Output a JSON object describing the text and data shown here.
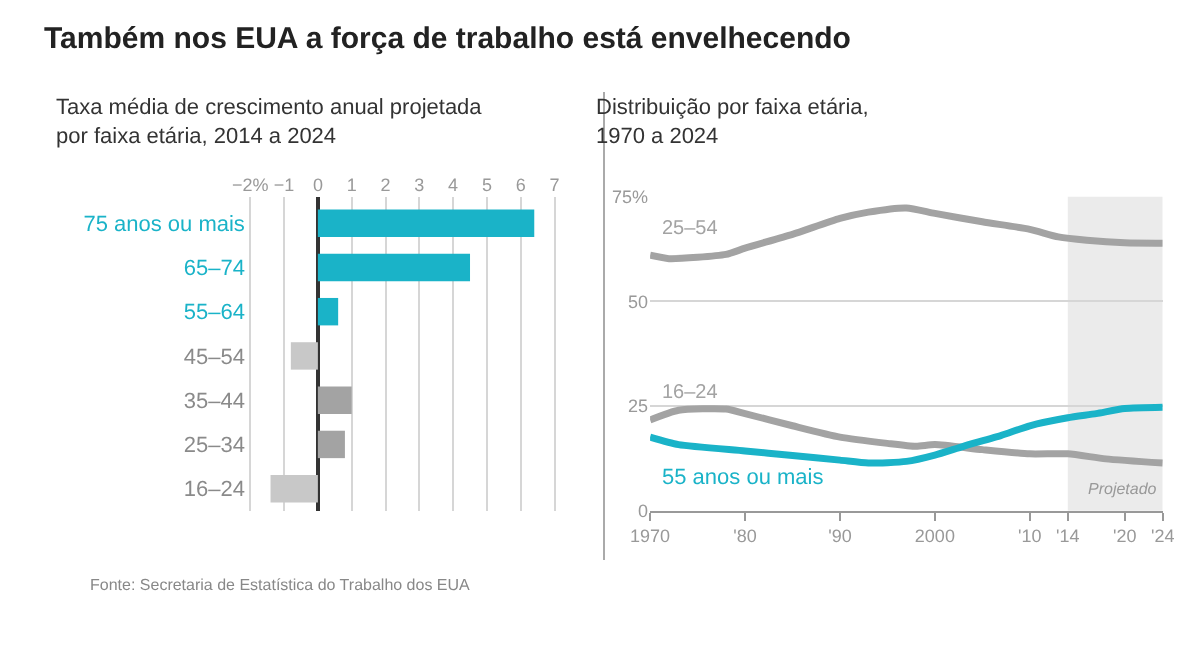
{
  "chart_data": [
    {
      "type": "bar",
      "orientation": "horizontal",
      "title": "Também nos EUA a força de trabalho está envelhecendo",
      "subtitle": "Taxa média de crescimento anual projetada\npor faixa etária, 2014 a 2024",
      "categories": [
        "75 anos ou mais",
        "65–74",
        "55–64",
        "45–54",
        "35–44",
        "25–34",
        "16–24"
      ],
      "values": [
        6.4,
        4.5,
        0.6,
        -0.8,
        1.0,
        0.8,
        -1.4
      ],
      "colors": [
        "#1ab3c8",
        "#1ab3c8",
        "#1ab3c8",
        "#c8c8c8",
        "#a3a3a3",
        "#a3a3a3",
        "#c8c8c8"
      ],
      "xlim": [
        -2.1,
        7.1
      ],
      "xticks": [
        {
          "value": -2,
          "label": "−2%"
        },
        {
          "value": -1,
          "label": "−1"
        },
        0,
        1,
        2,
        3,
        4,
        5,
        6,
        7
      ],
      "grid": "x",
      "annotations": [
        "Fonte: Secretaria de Estatística do Trabalho dos EUA"
      ]
    },
    {
      "type": "line",
      "title": "Distribuição por faixa etária,\n1970 a 2024",
      "series": [
        {
          "name": "25–54",
          "color": "#a3a3a3",
          "x": [
            1970,
            1972,
            1978,
            1980,
            1985,
            1990,
            1993,
            1997,
            2000,
            2005,
            2010,
            2013,
            2016,
            2020,
            2024
          ],
          "values": [
            61,
            60.2,
            61.2,
            62.7,
            66,
            69.8,
            71.3,
            72.3,
            71,
            69,
            67.2,
            65.4,
            64.6,
            64,
            63.9
          ]
        },
        {
          "name": "16–24",
          "color": "#a3a3a3",
          "x": [
            1970,
            1973,
            1978,
            1980,
            1985,
            1990,
            1995,
            1998,
            2000,
            2005,
            2010,
            2014,
            2018,
            2024
          ],
          "values": [
            21.7,
            24,
            24.3,
            23.2,
            20.3,
            17.6,
            16.1,
            15.4,
            15.8,
            14.6,
            13.6,
            13.6,
            12.4,
            11.4
          ]
        },
        {
          "name": "55 anos ou mais",
          "color": "#1ab3c8",
          "x": [
            1970,
            1973,
            1980,
            1985,
            1990,
            1993,
            1997,
            2000,
            2003,
            2007,
            2010,
            2014,
            2017,
            2020,
            2024
          ],
          "values": [
            17.6,
            15.8,
            14.3,
            13.2,
            12.1,
            11.4,
            11.8,
            13.3,
            15.4,
            18,
            20.3,
            22.2,
            23.2,
            24.4,
            24.7
          ]
        }
      ],
      "xlim": [
        1970,
        2024
      ],
      "xticks": [
        1970,
        {
          "value": 1980,
          "label": "'80"
        },
        {
          "value": 1990,
          "label": "'90"
        },
        2000,
        {
          "value": 2010,
          "label": "'10"
        },
        {
          "value": 2014,
          "label": "'14"
        },
        {
          "value": 2020,
          "label": "'20"
        },
        {
          "value": 2024,
          "label": "'24"
        }
      ],
      "ylim": [
        0,
        75
      ],
      "yticks": [
        0,
        25,
        50,
        {
          "value": 75,
          "label": "75%"
        }
      ],
      "grid": "y",
      "bands": [
        {
          "axis": "x",
          "from": 2014,
          "to": 2024,
          "label": "Projetado",
          "color": "#ebebeb"
        }
      ]
    }
  ]
}
